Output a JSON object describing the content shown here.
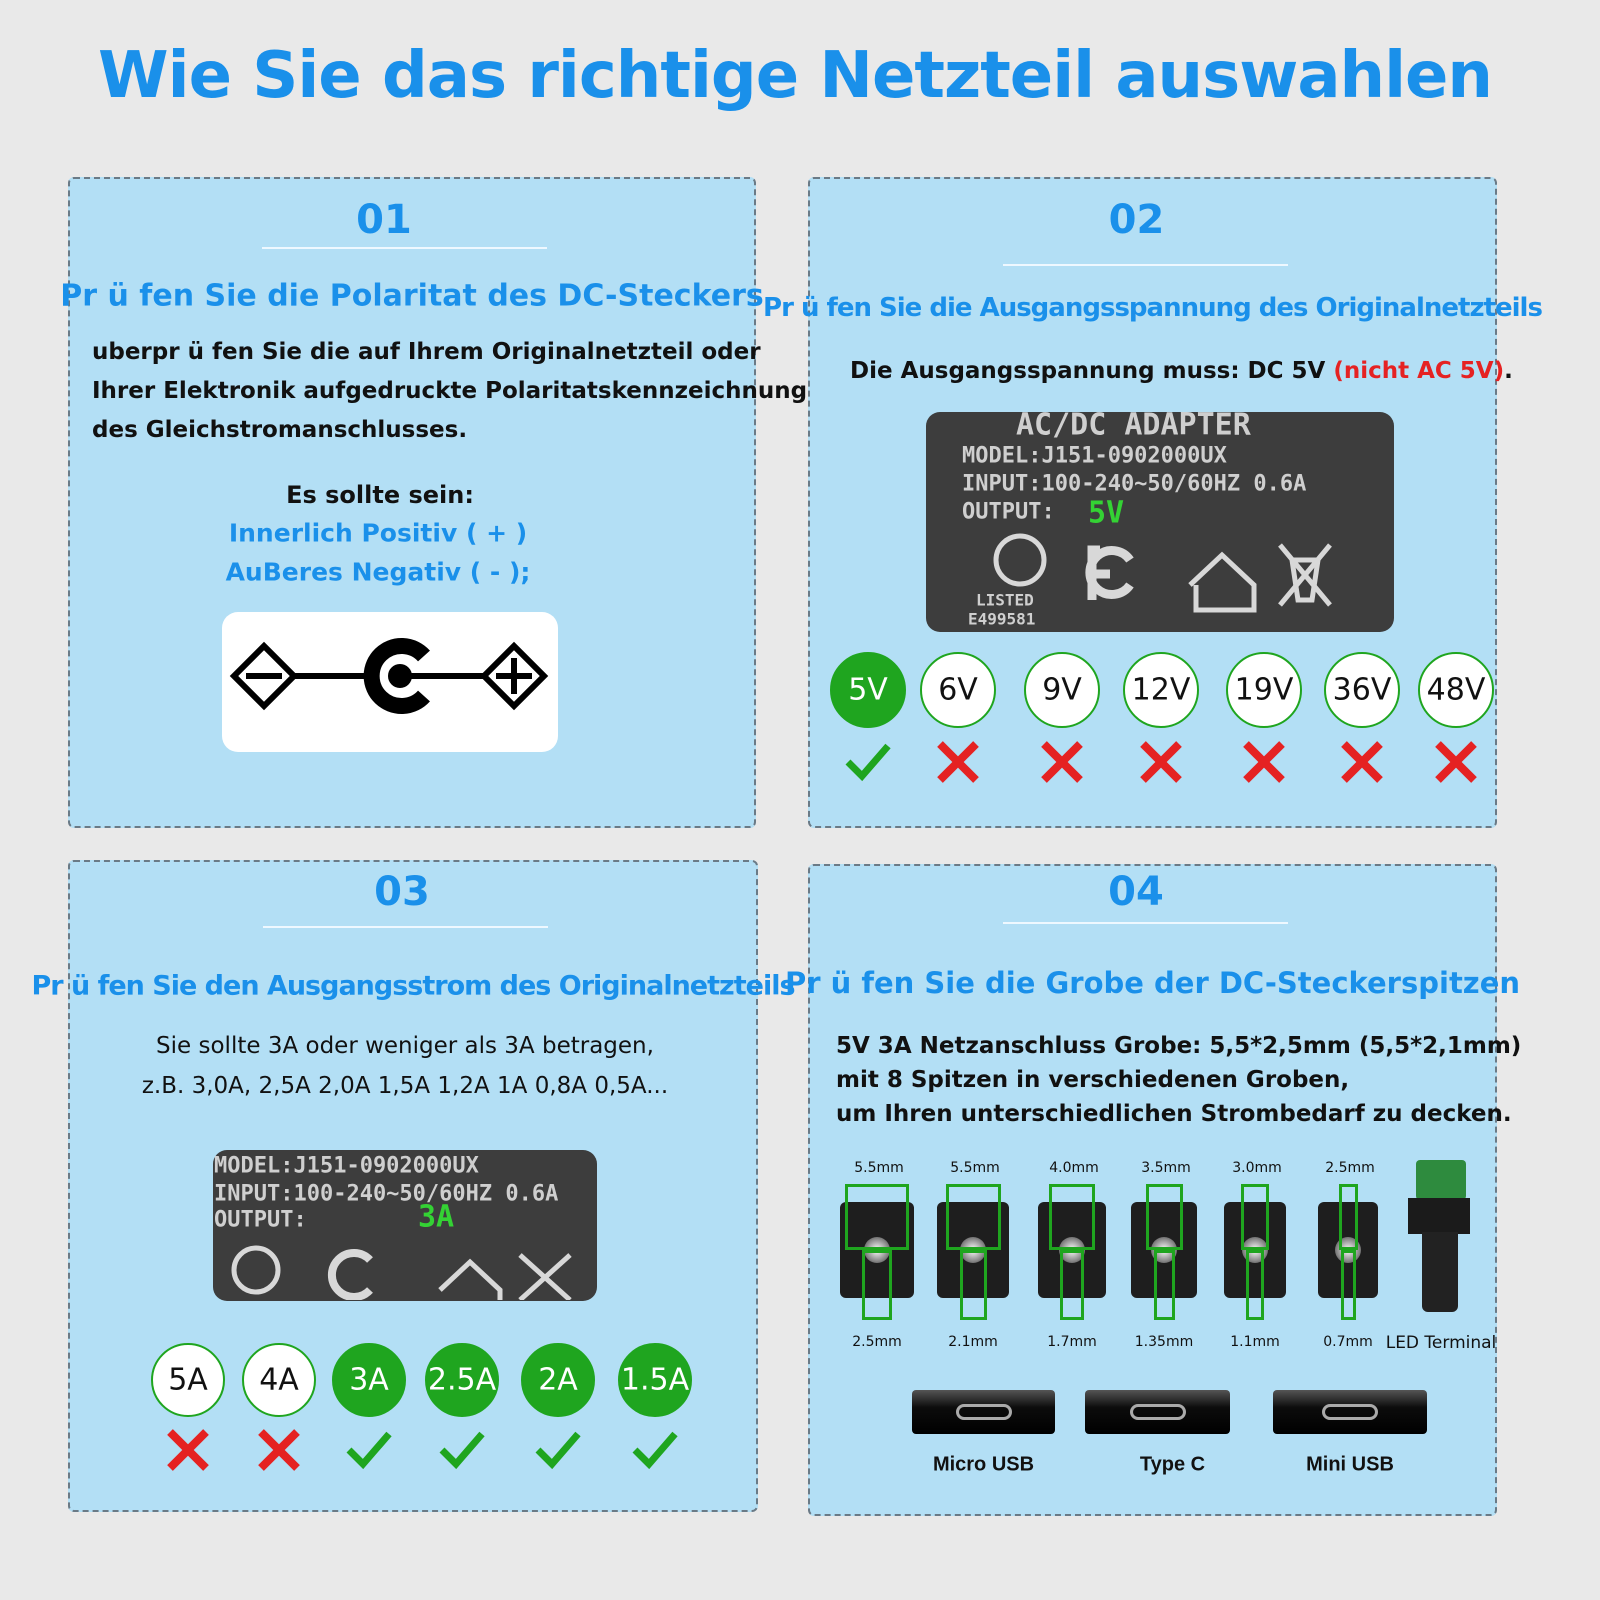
{
  "title": "Wie Sie das richtige Netzteil auswahlen",
  "panels": [
    {
      "number": "01",
      "heading": "Pr ü fen Sie die Polaritat des DC-Steckers",
      "body": [
        "uberpr ü fen Sie die auf Ihrem Originalnetzteil oder",
        "Ihrer Elektronik aufgedruckte Polaritatskennzeichnung",
        "des Gleichstromanschlusses."
      ],
      "subheading": "Es sollte sein:",
      "notes": [
        "Innerlich Positiv ( + )",
        "AuBeres Negativ ( - );"
      ]
    },
    {
      "number": "02",
      "heading": "Pr ü fen Sie die Ausgangsspannung des Originalnetzteils",
      "body": [
        "Die Ausgangsspannung muss: DC 5V",
        "(nicht AC 5V)",
        "."
      ],
      "label": [
        "AC/DC ADAPTER",
        "MODEL:J151-0902000UX",
        "INPUT:100-240~50/60HZ 0.6A",
        "OUTPUT:",
        "5V",
        "LISTED",
        "E499581"
      ],
      "options": [
        {
          "label": "5V",
          "ok": true
        },
        {
          "label": "6V",
          "ok": false
        },
        {
          "label": "9V",
          "ok": false
        },
        {
          "label": "12V",
          "ok": false
        },
        {
          "label": "19V",
          "ok": false
        },
        {
          "label": "36V",
          "ok": false
        },
        {
          "label": "48V",
          "ok": false
        }
      ]
    },
    {
      "number": "03",
      "heading": "Pr ü fen Sie den Ausgangsstrom des Originalnetzteils",
      "body": [
        "Sie sollte 3A oder weniger als 3A betragen,",
        "z.B. 3,0A, 2,5A 2,0A 1,5A 1,2A 1A 0,8A 0,5A..."
      ],
      "label": [
        "MODEL:J151-0902000UX",
        "INPUT:100-240~50/60HZ 0.6A",
        "OUTPUT:",
        "3A"
      ],
      "options": [
        {
          "label": "5A",
          "ok": false
        },
        {
          "label": "4A",
          "ok": false
        },
        {
          "label": "3A",
          "ok": true
        },
        {
          "label": "2.5A",
          "ok": true
        },
        {
          "label": "2A",
          "ok": true
        },
        {
          "label": "1.5A",
          "ok": true
        }
      ]
    },
    {
      "number": "04",
      "heading": "Pr ü fen Sie die Grobe der DC-Steckerspitzen",
      "body": [
        "5V 3A Netzanschluss Grobe: 5,5*2,5mm (5,5*2,1mm)",
        "mit 8 Spitzen in verschiedenen Groben,",
        "um Ihren unterschiedlichen Strombedarf zu decken."
      ],
      "tips": [
        {
          "outer": "5.5mm",
          "inner": "2.5mm"
        },
        {
          "outer": "5.5mm",
          "inner": "2.1mm"
        },
        {
          "outer": "4.0mm",
          "inner": "1.7mm"
        },
        {
          "outer": "3.5mm",
          "inner": "1.35mm"
        },
        {
          "outer": "3.0mm",
          "inner": "1.1mm"
        },
        {
          "outer": "2.5mm",
          "inner": "0.7mm"
        }
      ],
      "terminal": "LED Terminal",
      "usb": [
        "Micro USB",
        "Type C",
        "Mini USB"
      ]
    }
  ]
}
